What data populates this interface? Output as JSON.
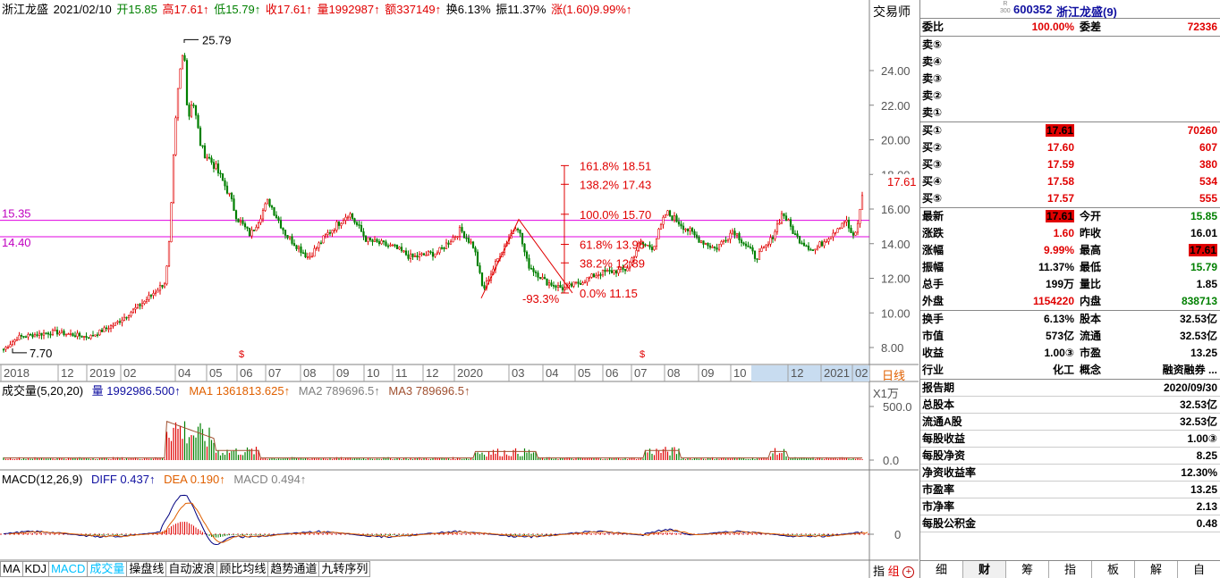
{
  "stock": {
    "name": "浙江龙盛",
    "date": "2021/02/10",
    "open": "开15.85",
    "high": "高17.61↑",
    "low": "低15.79↑",
    "close": "收17.61↑",
    "volume": "量1992987↑",
    "amount": "额337149↑",
    "turnover": "换6.13%",
    "amplitude": "振11.37%",
    "change": "涨(1.60)9.99%↑"
  },
  "trader_label": "交易师",
  "daily_label": "日线",
  "price_axis": [
    "24.00",
    "22.00",
    "20.00",
    "18.00",
    "16.00",
    "14.00",
    "12.00",
    "10.00",
    "8.00"
  ],
  "price_markers": {
    "high_label": "25.79",
    "low_label": "7.70",
    "current_label": "17.61",
    "line1": "15.35",
    "line2": "14.40",
    "wave_label": "-93.3%"
  },
  "fib": [
    {
      "label": "161.8% 18.51",
      "price": 18.51
    },
    {
      "label": "138.2% 17.43",
      "price": 17.43
    },
    {
      "label": "100.0% 15.70",
      "price": 15.7
    },
    {
      "label": "61.8% 13.96",
      "price": 13.96
    },
    {
      "label": "38.2% 12.89",
      "price": 12.89
    },
    {
      "label": "0.0% 11.15",
      "price": 11.15
    }
  ],
  "time_axis": [
    "2018",
    "12",
    "2019",
    "02",
    "04",
    "05",
    "06",
    "07",
    "08",
    "09",
    "10",
    "11",
    "12",
    "2020",
    "03",
    "04",
    "05",
    "06",
    "07",
    "08",
    "09",
    "10",
    "12",
    "2021",
    "02"
  ],
  "volume_panel": {
    "title": "成交量(5,20,20)",
    "vol": "量 1992986.500↑",
    "ma1": "MA1 1361813.625↑",
    "ma2": "MA2 789696.5↑",
    "ma3": "MA3 789696.5↑",
    "unit": "X1万",
    "axis": [
      "500.0",
      "0.0"
    ]
  },
  "macd_panel": {
    "title": "MACD(12,26,9)",
    "diff": "DIFF 0.437↑",
    "dea": "DEA 0.190↑",
    "macd": "MACD 0.494↑",
    "axis": [
      "0"
    ]
  },
  "bottom_tabs": [
    "MA",
    "KDJ",
    "MACD",
    "成交量",
    "操盘线",
    "自动波浪",
    "顾比均线",
    "趋势通道",
    "九转序列"
  ],
  "zhi": "指",
  "zu": "组",
  "quote": {
    "r_label": "R",
    "r_sub": "300",
    "code": "600352",
    "name": "浙江龙盛(9)",
    "weibi_label": "委比",
    "weibi": "100.00%",
    "weicha_label": "委差",
    "weicha": "72336",
    "sells": [
      {
        "label": "卖⑤",
        "price": "",
        "vol": ""
      },
      {
        "label": "卖④",
        "price": "",
        "vol": ""
      },
      {
        "label": "卖③",
        "price": "",
        "vol": ""
      },
      {
        "label": "卖②",
        "price": "",
        "vol": ""
      },
      {
        "label": "卖①",
        "price": "",
        "vol": ""
      }
    ],
    "buys": [
      {
        "label": "买①",
        "price": "17.61",
        "vol": "70260"
      },
      {
        "label": "买②",
        "price": "17.60",
        "vol": "607"
      },
      {
        "label": "买③",
        "price": "17.59",
        "vol": "380"
      },
      {
        "label": "买④",
        "price": "17.58",
        "vol": "534"
      },
      {
        "label": "买⑤",
        "price": "17.57",
        "vol": "555"
      }
    ],
    "stats": [
      {
        "l1": "最新",
        "v1": "17.61",
        "h1": true,
        "c1": "red",
        "l2": "今开",
        "v2": "15.85",
        "c2": "green",
        "h2": false
      },
      {
        "l1": "涨跌",
        "v1": "1.60",
        "h1": false,
        "c1": "red",
        "l2": "昨收",
        "v2": "16.01",
        "c2": "black",
        "h2": false
      },
      {
        "l1": "涨幅",
        "v1": "9.99%",
        "h1": false,
        "c1": "red",
        "l2": "最高",
        "v2": "17.61",
        "c2": "red",
        "h2": true
      },
      {
        "l1": "振幅",
        "v1": "11.37%",
        "h1": false,
        "c1": "black",
        "l2": "最低",
        "v2": "15.79",
        "c2": "green",
        "h2": false
      },
      {
        "l1": "总手",
        "v1": "199万",
        "h1": false,
        "c1": "black",
        "l2": "量比",
        "v2": "1.85",
        "c2": "black",
        "h2": false
      },
      {
        "l1": "外盘",
        "v1": "1154220",
        "h1": false,
        "c1": "red",
        "l2": "内盘",
        "v2": "838713",
        "c2": "green",
        "h2": false
      }
    ],
    "stats2": [
      {
        "l1": "换手",
        "v1": "6.13%",
        "l2": "股本",
        "v2": "32.53亿"
      },
      {
        "l1": "市值",
        "v1": "573亿",
        "l2": "流通",
        "v2": "32.53亿"
      },
      {
        "l1": "收益",
        "v1": "1.00③",
        "l2": "市盈",
        "v2": "13.25"
      },
      {
        "l1": "行业",
        "v1": "化工",
        "l2": "概念",
        "v2": "融资融券 ..."
      }
    ],
    "finance": [
      {
        "l": "报告期",
        "v": "2020/09/30"
      },
      {
        "l": "总股本",
        "v": "32.53亿"
      },
      {
        "l": "流通A股",
        "v": "32.53亿"
      },
      {
        "l": "每股收益",
        "v": "1.00③"
      },
      {
        "l": "每股净资",
        "v": "8.25"
      },
      {
        "l": "净资收益率",
        "v": "12.30%"
      },
      {
        "l": "市盈率",
        "v": "13.25"
      },
      {
        "l": "市净率",
        "v": "2.13"
      },
      {
        "l": "每股公积金",
        "v": "0.48"
      }
    ],
    "tabs": [
      "细",
      "财",
      "筹",
      "指",
      "板",
      "解",
      "自"
    ]
  },
  "colors": {
    "up": "#e00000",
    "down": "#008000",
    "fib": "#e00000",
    "hline": "#e000e0",
    "grid": "#a0a0a0"
  }
}
